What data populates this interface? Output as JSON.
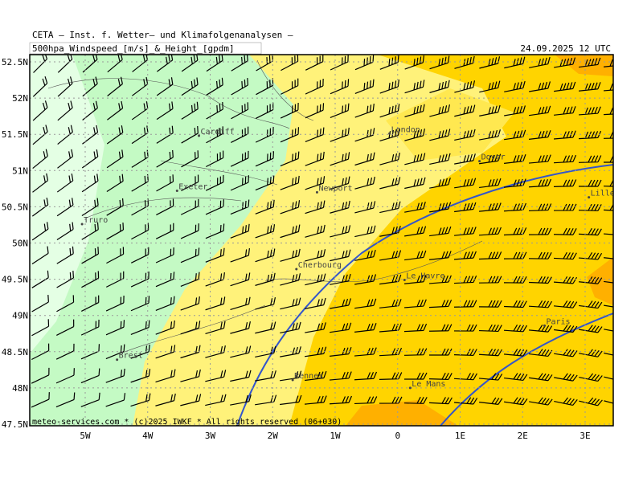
{
  "header": {
    "title": "CETA — Inst. f. Wetter— und Klimafolgenanalysen —",
    "subtitle": "500hpa_Windspeed_[m/s]_&_Height_[gpdm]",
    "date": "24.09.2025 12 UTC"
  },
  "footer": "meteo-services.com * (c)2025 IWKF * All rights reserved (06+030)",
  "map": {
    "lat_ticks": [
      {
        "value": 52.5,
        "label": "52.5N"
      },
      {
        "value": 52,
        "label": "52N"
      },
      {
        "value": 51.5,
        "label": "51.5N"
      },
      {
        "value": 51,
        "label": "51N"
      },
      {
        "value": 50.5,
        "label": "50.5N"
      },
      {
        "value": 50,
        "label": "50N"
      },
      {
        "value": 49.5,
        "label": "49.5N"
      },
      {
        "value": 49,
        "label": "49N"
      },
      {
        "value": 48.5,
        "label": "48.5N"
      },
      {
        "value": 48,
        "label": "48N"
      },
      {
        "value": 47.5,
        "label": "47.5N"
      }
    ],
    "lon_ticks": [
      {
        "value": -5,
        "label": "5W"
      },
      {
        "value": -4,
        "label": "4W"
      },
      {
        "value": -3,
        "label": "3W"
      },
      {
        "value": -2,
        "label": "2W"
      },
      {
        "value": -1,
        "label": "1W"
      },
      0,
      {
        "value": 1,
        "label": "1E"
      },
      {
        "value": 2,
        "label": "2E"
      },
      {
        "value": 3,
        "label": "3E"
      }
    ],
    "cities": [
      {
        "name": "Cardiff",
        "lat": 51.48,
        "lon": -3.18
      },
      {
        "name": "London",
        "lat": 51.51,
        "lon": -0.13
      },
      {
        "name": "Dover",
        "lat": 51.13,
        "lon": 1.31
      },
      {
        "name": "Exeter",
        "lat": 50.72,
        "lon": -3.53
      },
      {
        "name": "Newport",
        "lat": 50.7,
        "lon": -1.29
      },
      {
        "name": "Truro",
        "lat": 50.26,
        "lon": -5.05
      },
      {
        "name": "Lille",
        "lat": 50.63,
        "lon": 3.06
      },
      {
        "name": "Cherbourg",
        "lat": 49.64,
        "lon": -1.62
      },
      {
        "name": "Le Havre",
        "lat": 49.49,
        "lon": 0.11
      },
      {
        "name": "Paris",
        "lat": 48.86,
        "lon": 2.35
      },
      {
        "name": "Brest",
        "lat": 48.39,
        "lon": -4.49
      },
      {
        "name": "Rennes",
        "lat": 48.11,
        "lon": -1.68
      },
      {
        "name": "Le Mans",
        "lat": 48.0,
        "lon": 0.2
      }
    ]
  }
}
